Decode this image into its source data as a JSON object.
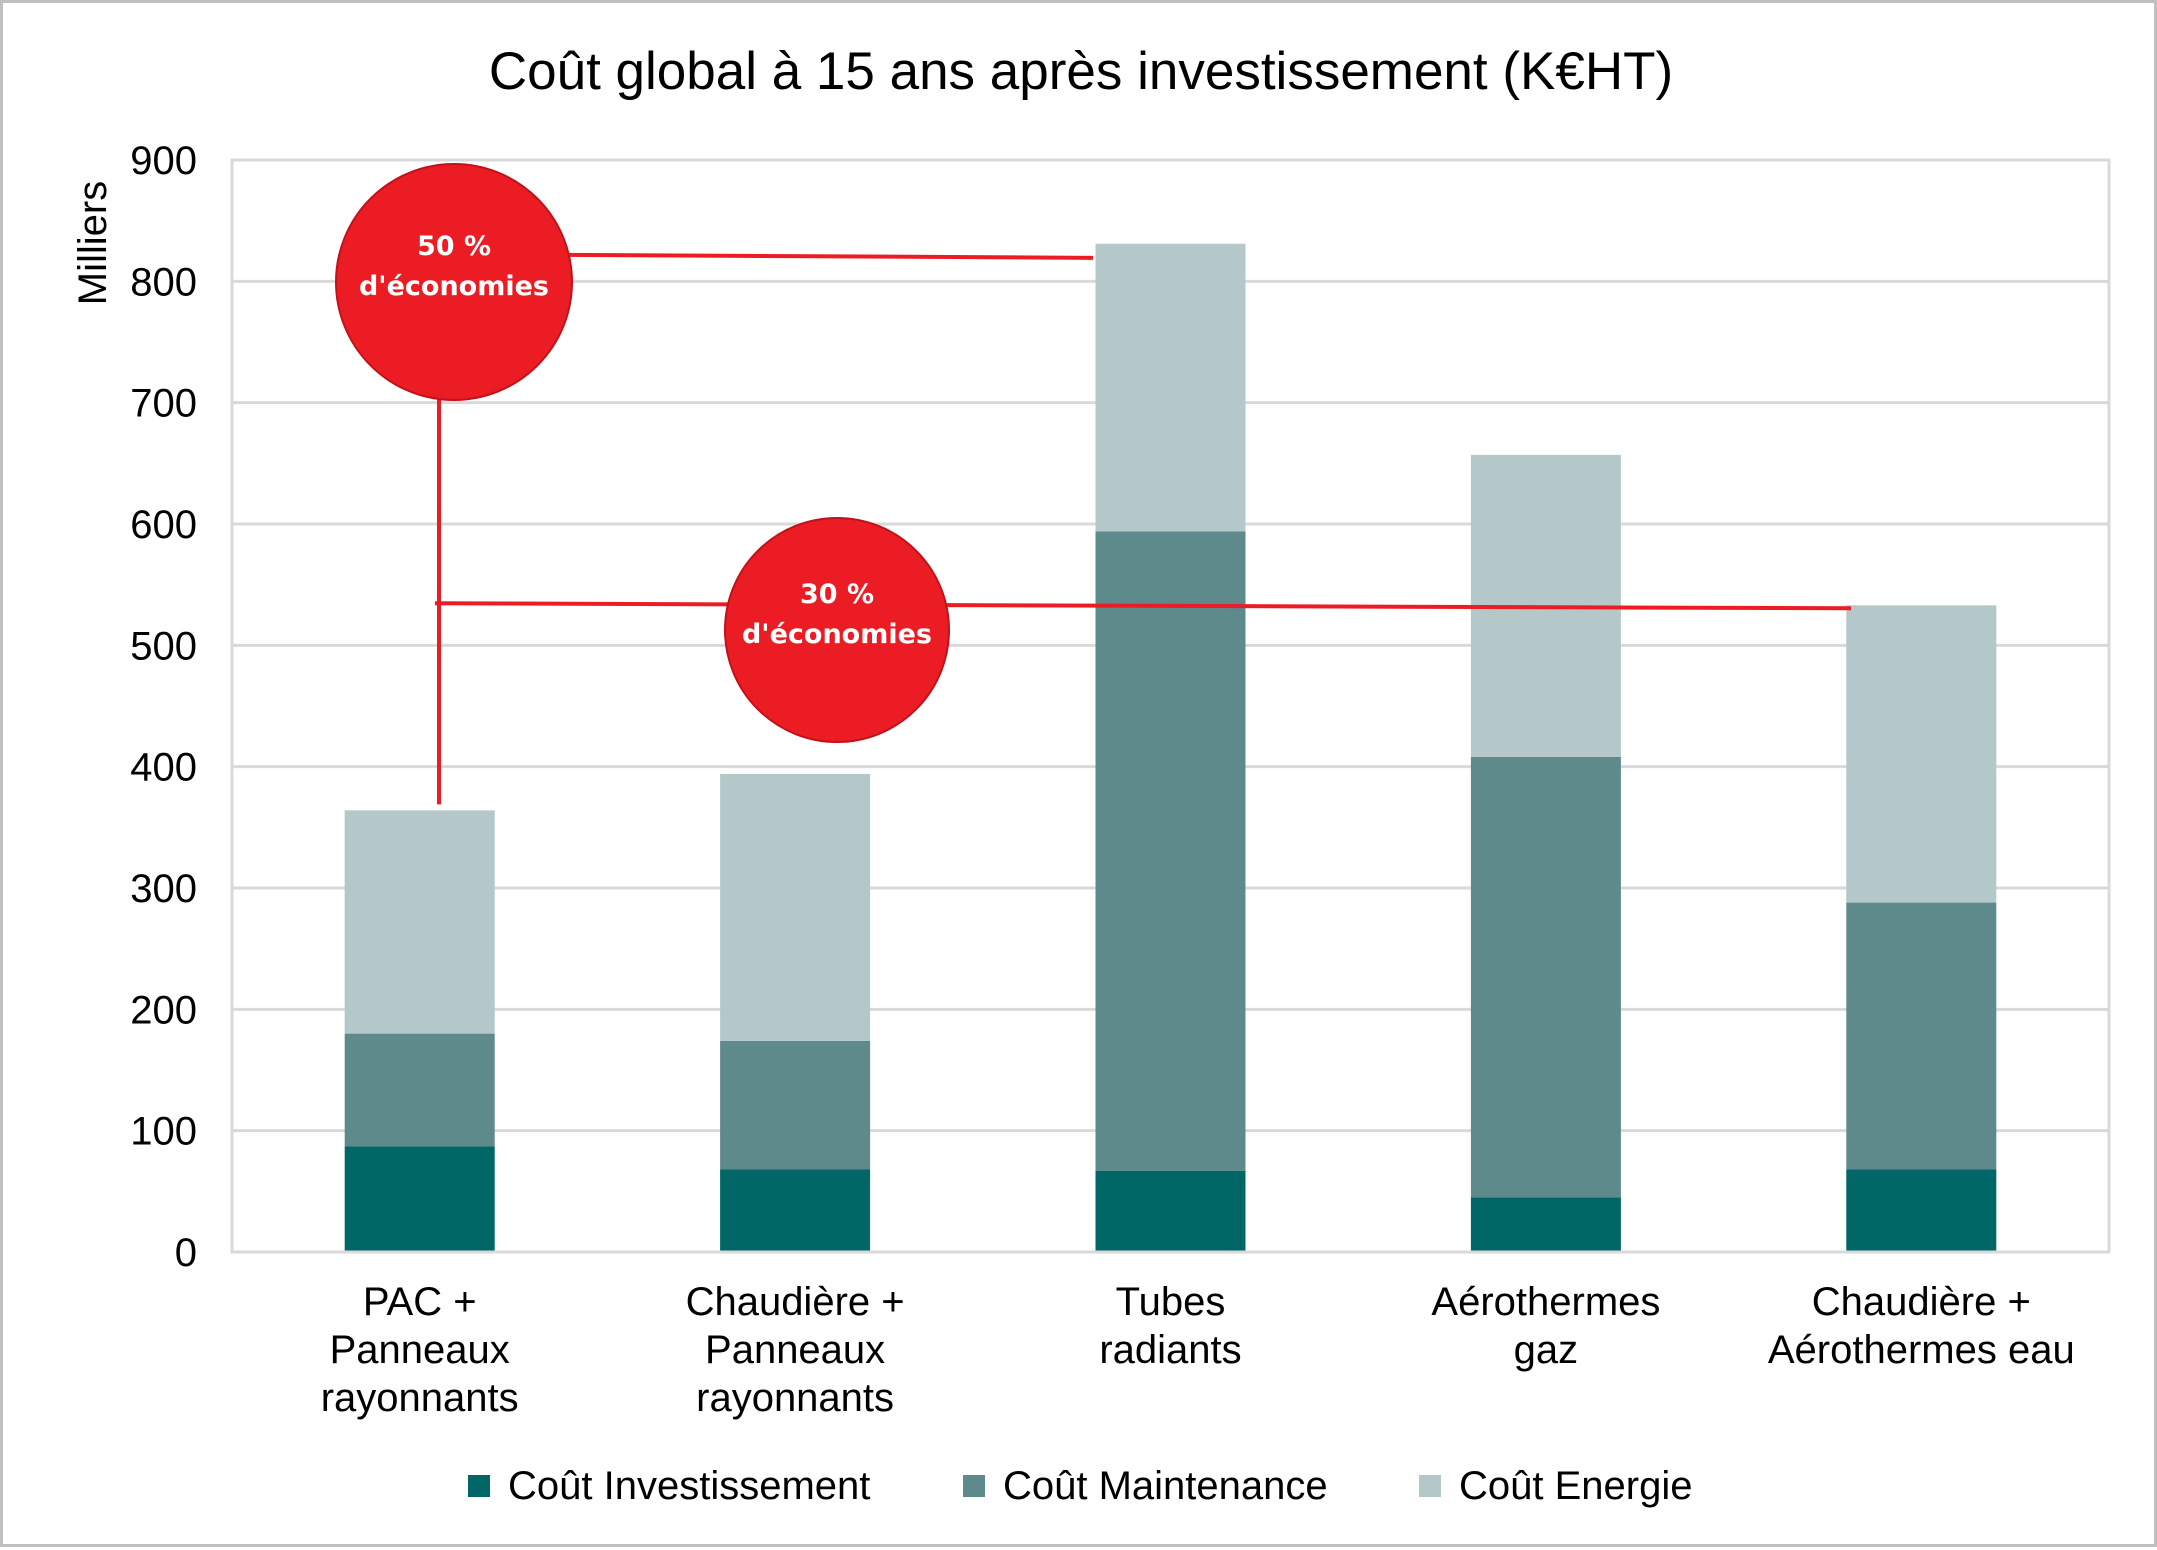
{
  "chart_data": {
    "type": "bar",
    "stacked": true,
    "title": "Coût global à 15 ans après investissement (K€HT)",
    "ylabel": "Milliers",
    "xlabel": "",
    "ylim": [
      0,
      900
    ],
    "yticks": [
      "0",
      "100",
      "200",
      "300",
      "400",
      "500",
      "600",
      "700",
      "800",
      "900"
    ],
    "grid": true,
    "legend_position": "bottom",
    "categories": [
      [
        "PAC +",
        "Panneaux",
        "rayonnants"
      ],
      [
        "Chaudière +",
        "Panneaux",
        "rayonnants"
      ],
      [
        "Tubes",
        "radiants"
      ],
      [
        "Aérothermes",
        "gaz"
      ],
      [
        "Chaudière +",
        "Aérothermes eau"
      ]
    ],
    "series": [
      {
        "name": "Coût Investissement",
        "color": "#006766",
        "values": [
          87,
          68,
          67,
          45,
          68
        ]
      },
      {
        "name": "Coût Maintenance",
        "color": "#5e8a8c",
        "values": [
          93,
          106,
          527,
          363,
          220
        ]
      },
      {
        "name": "Coût Energie",
        "color": "#b4c8ca",
        "values": [
          184,
          220,
          237,
          249,
          245
        ]
      }
    ],
    "annotations": [
      {
        "line1": "50 %",
        "line2": "d'économies",
        "color": "#ec1c24"
      },
      {
        "line1": "30 %",
        "line2": "d'économies",
        "color": "#ec1c24"
      }
    ]
  }
}
